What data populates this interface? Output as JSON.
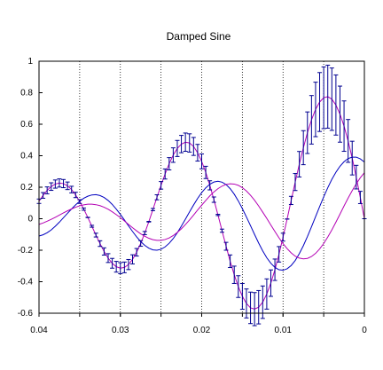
{
  "chart_data": {
    "type": "line",
    "title": "Damped Sine",
    "x_reversed": true,
    "xlim": [
      0.04,
      0
    ],
    "ylim": [
      -0.6,
      1
    ],
    "x_ticks": [
      0.04,
      0.03,
      0.02,
      0.01,
      0
    ],
    "x_tick_labels": [
      "0.04",
      "0.03",
      "0.02",
      "0.01",
      "0"
    ],
    "y_ticks": [
      1,
      0.8,
      0.6,
      0.4,
      0.2,
      0,
      -0.2,
      -0.4,
      -0.6
    ],
    "y_tick_labels": [
      "1",
      "0.8",
      "0.6",
      "0.4",
      "0.2",
      "0",
      "-0.2",
      "-0.4",
      "-0.6"
    ],
    "vertical_gridlines_x": [
      0.035,
      0.03,
      0.025,
      0.02,
      0.015,
      0.01,
      0.005
    ],
    "grid": "vertical dotted",
    "colors": {
      "magenta": "#b400b4",
      "blue": "#0000c0",
      "errorbar": "#000090",
      "axis": "#000000"
    },
    "series": [
      {
        "style": "magenta line with error bars",
        "x": [
          0.0,
          0.0005,
          0.001,
          0.0015,
          0.002,
          0.0025,
          0.003,
          0.0035,
          0.004,
          0.0045,
          0.005,
          0.0055,
          0.006,
          0.0065,
          0.007,
          0.0075,
          0.008,
          0.0085,
          0.009,
          0.0095,
          0.01,
          0.0105,
          0.011,
          0.0115,
          0.012,
          0.0125,
          0.013,
          0.0135,
          0.014,
          0.0145,
          0.015,
          0.0155,
          0.016,
          0.0165,
          0.017,
          0.0175,
          0.018,
          0.0185,
          0.019,
          0.0195,
          0.02,
          0.0205,
          0.021,
          0.0215,
          0.022,
          0.0225,
          0.023,
          0.0235,
          0.024,
          0.0245,
          0.025,
          0.0255,
          0.026,
          0.0265,
          0.027,
          0.0275,
          0.028,
          0.0285,
          0.029,
          0.0295,
          0.03,
          0.0305,
          0.031,
          0.0315,
          0.032,
          0.0325,
          0.033,
          0.0335,
          0.034,
          0.0345,
          0.035,
          0.0355,
          0.036,
          0.0365,
          0.037,
          0.0375,
          0.038,
          0.0385,
          0.039,
          0.0395,
          0.04
        ],
        "y": [
          0.0,
          0.135,
          0.264,
          0.385,
          0.494,
          0.588,
          0.664,
          0.722,
          0.759,
          0.775,
          0.768,
          0.741,
          0.694,
          0.628,
          0.546,
          0.451,
          0.346,
          0.233,
          0.116,
          -0.002,
          -0.117,
          -0.226,
          -0.324,
          -0.409,
          -0.478,
          -0.53,
          -0.562,
          -0.574,
          -0.566,
          -0.538,
          -0.493,
          -0.431,
          -0.356,
          -0.27,
          -0.175,
          -0.076,
          0.024,
          0.121,
          0.212,
          0.294,
          0.364,
          0.419,
          0.459,
          0.481,
          0.486,
          0.474,
          0.446,
          0.404,
          0.349,
          0.284,
          0.212,
          0.136,
          0.058,
          -0.019,
          -0.091,
          -0.157,
          -0.213,
          -0.258,
          -0.291,
          -0.309,
          -0.314,
          -0.305,
          -0.283,
          -0.25,
          -0.208,
          -0.158,
          -0.104,
          -0.048,
          0.008,
          0.061,
          0.109,
          0.151,
          0.185,
          0.209,
          0.223,
          0.227,
          0.22,
          0.204,
          0.18,
          0.148,
          0.111
        ]
      },
      {
        "style": "blue line",
        "x": [
          0.0,
          0.0005,
          0.001,
          0.0015,
          0.002,
          0.0025,
          0.003,
          0.0035,
          0.004,
          0.0045,
          0.005,
          0.0055,
          0.006,
          0.0065,
          0.007,
          0.0075,
          0.008,
          0.0085,
          0.009,
          0.0095,
          0.01,
          0.0105,
          0.011,
          0.0115,
          0.012,
          0.0125,
          0.013,
          0.0135,
          0.014,
          0.0145,
          0.015,
          0.0155,
          0.016,
          0.0165,
          0.017,
          0.0175,
          0.018,
          0.0185,
          0.019,
          0.0195,
          0.02,
          0.0205,
          0.021,
          0.0215,
          0.022,
          0.0225,
          0.023,
          0.0235,
          0.024,
          0.0245,
          0.025,
          0.0255,
          0.026,
          0.0265,
          0.027,
          0.0275,
          0.028,
          0.0285,
          0.029,
          0.0295,
          0.03,
          0.0305,
          0.031,
          0.0315,
          0.032,
          0.0325,
          0.033,
          0.0335,
          0.034,
          0.0345,
          0.035,
          0.0355,
          0.036,
          0.0365,
          0.037,
          0.0375,
          0.038,
          0.0385,
          0.039,
          0.0395,
          0.04
        ],
        "y": [
          0.36,
          0.38,
          0.391,
          0.391,
          0.382,
          0.362,
          0.333,
          0.295,
          0.25,
          0.197,
          0.139,
          0.077,
          0.013,
          -0.051,
          -0.113,
          -0.171,
          -0.222,
          -0.265,
          -0.297,
          -0.318,
          -0.327,
          -0.324,
          -0.309,
          -0.283,
          -0.248,
          -0.204,
          -0.154,
          -0.1,
          -0.044,
          0.011,
          0.064,
          0.113,
          0.156,
          0.191,
          0.217,
          0.232,
          0.238,
          0.233,
          0.219,
          0.196,
          0.166,
          0.129,
          0.087,
          0.043,
          -0.003,
          -0.047,
          -0.089,
          -0.126,
          -0.156,
          -0.179,
          -0.194,
          -0.2,
          -0.198,
          -0.187,
          -0.169,
          -0.145,
          -0.115,
          -0.081,
          -0.045,
          -0.008,
          0.028,
          0.061,
          0.091,
          0.116,
          0.135,
          0.147,
          0.153,
          0.151,
          0.143,
          0.13,
          0.111,
          0.088,
          0.062,
          0.034,
          0.006,
          -0.022,
          -0.048,
          -0.071,
          -0.089,
          -0.102,
          -0.11
        ]
      },
      {
        "style": "magenta line",
        "x": [
          0.0,
          0.0005,
          0.001,
          0.0015,
          0.002,
          0.0025,
          0.003,
          0.0035,
          0.004,
          0.0045,
          0.005,
          0.0055,
          0.006,
          0.0065,
          0.007,
          0.0075,
          0.008,
          0.0085,
          0.009,
          0.0095,
          0.01,
          0.0105,
          0.011,
          0.0115,
          0.012,
          0.0125,
          0.013,
          0.0135,
          0.014,
          0.0145,
          0.015,
          0.0155,
          0.016,
          0.0165,
          0.017,
          0.0175,
          0.018,
          0.0185,
          0.019,
          0.0195,
          0.02,
          0.0205,
          0.021,
          0.0215,
          0.022,
          0.0225,
          0.023,
          0.0235,
          0.024,
          0.0245,
          0.025,
          0.0255,
          0.026,
          0.0265,
          0.027,
          0.0275,
          0.028,
          0.0285,
          0.029,
          0.0295,
          0.03,
          0.0305,
          0.031,
          0.0315,
          0.032,
          0.0325,
          0.033,
          0.0335,
          0.034,
          0.0345,
          0.035,
          0.0355,
          0.036,
          0.0365,
          0.037,
          0.0375,
          0.038,
          0.0385,
          0.039,
          0.0395,
          0.04
        ],
        "y": [
          0.292,
          0.26,
          0.221,
          0.178,
          0.131,
          0.081,
          0.029,
          -0.022,
          -0.071,
          -0.116,
          -0.157,
          -0.192,
          -0.22,
          -0.24,
          -0.252,
          -0.255,
          -0.25,
          -0.238,
          -0.217,
          -0.19,
          -0.158,
          -0.121,
          -0.081,
          -0.04,
          0.002,
          0.042,
          0.081,
          0.117,
          0.149,
          0.176,
          0.197,
          0.212,
          0.22,
          0.222,
          0.218,
          0.207,
          0.191,
          0.17,
          0.145,
          0.116,
          0.086,
          0.055,
          0.023,
          -0.008,
          -0.037,
          -0.064,
          -0.087,
          -0.107,
          -0.122,
          -0.132,
          -0.137,
          -0.137,
          -0.133,
          -0.124,
          -0.111,
          -0.096,
          -0.077,
          -0.057,
          -0.036,
          -0.014,
          0.007,
          0.026,
          0.044,
          0.06,
          0.073,
          0.083,
          0.089,
          0.092,
          0.092,
          0.088,
          0.082,
          0.073,
          0.062,
          0.05,
          0.037,
          0.023,
          0.009,
          -0.004,
          -0.016,
          -0.027,
          -0.036
        ]
      }
    ],
    "errorbars": {
      "series_index": 0,
      "x": [
        0.0,
        0.0005,
        0.001,
        0.0015,
        0.002,
        0.0025,
        0.003,
        0.0035,
        0.004,
        0.0045,
        0.005,
        0.0055,
        0.006,
        0.0065,
        0.007,
        0.0075,
        0.008,
        0.0085,
        0.009,
        0.0095,
        0.01,
        0.0105,
        0.011,
        0.0115,
        0.012,
        0.0125,
        0.013,
        0.0135,
        0.014,
        0.0145,
        0.015,
        0.0155,
        0.016,
        0.0165,
        0.017,
        0.0175,
        0.018,
        0.0185,
        0.019,
        0.0195,
        0.02,
        0.0205,
        0.021,
        0.0215,
        0.022,
        0.0225,
        0.023,
        0.0235,
        0.024,
        0.0245,
        0.025,
        0.0255,
        0.026,
        0.0265,
        0.027,
        0.0275,
        0.028,
        0.0285,
        0.029,
        0.0295,
        0.03,
        0.0305,
        0.031,
        0.0315,
        0.032,
        0.0325,
        0.033,
        0.0335,
        0.034,
        0.0345,
        0.035,
        0.0355,
        0.036,
        0.0365,
        0.037,
        0.0375,
        0.038,
        0.0385,
        0.039,
        0.0395,
        0.04
      ],
      "y": [
        0.0,
        0.135,
        0.264,
        0.385,
        0.494,
        0.588,
        0.664,
        0.722,
        0.759,
        0.775,
        0.768,
        0.741,
        0.694,
        0.628,
        0.546,
        0.451,
        0.346,
        0.233,
        0.116,
        -0.002,
        -0.117,
        -0.226,
        -0.324,
        -0.409,
        -0.478,
        -0.53,
        -0.562,
        -0.574,
        -0.566,
        -0.538,
        -0.493,
        -0.431,
        -0.356,
        -0.27,
        -0.175,
        -0.076,
        0.024,
        0.121,
        0.212,
        0.294,
        0.364,
        0.419,
        0.459,
        0.481,
        0.486,
        0.474,
        0.446,
        0.404,
        0.349,
        0.284,
        0.212,
        0.136,
        0.058,
        -0.019,
        -0.091,
        -0.157,
        -0.213,
        -0.258,
        -0.291,
        -0.309,
        -0.314,
        -0.305,
        -0.283,
        -0.25,
        -0.208,
        -0.158,
        -0.104,
        -0.048,
        0.008,
        0.061,
        0.109,
        0.151,
        0.185,
        0.209,
        0.223,
        0.227,
        0.22,
        0.204,
        0.18,
        0.148,
        0.111
      ],
      "err": [
        0.0,
        0.039,
        0.075,
        0.107,
        0.136,
        0.16,
        0.178,
        0.191,
        0.198,
        0.2,
        0.196,
        0.187,
        0.173,
        0.154,
        0.132,
        0.108,
        0.081,
        0.054,
        0.026,
        0.0,
        0.025,
        0.049,
        0.068,
        0.084,
        0.096,
        0.103,
        0.106,
        0.105,
        0.1,
        0.092,
        0.082,
        0.069,
        0.055,
        0.04,
        0.025,
        0.01,
        0.004,
        0.017,
        0.029,
        0.039,
        0.047,
        0.053,
        0.057,
        0.058,
        0.058,
        0.055,
        0.051,
        0.046,
        0.039,
        0.032,
        0.024,
        0.016,
        0.007,
        0.002,
        0.01,
        0.018,
        0.024,
        0.029,
        0.032,
        0.034,
        0.035,
        0.034,
        0.031,
        0.028,
        0.023,
        0.018,
        0.012,
        0.006,
        0.001,
        0.007,
        0.012,
        0.017,
        0.021,
        0.024,
        0.026,
        0.026,
        0.026,
        0.024,
        0.022,
        0.018,
        0.014
      ]
    }
  }
}
